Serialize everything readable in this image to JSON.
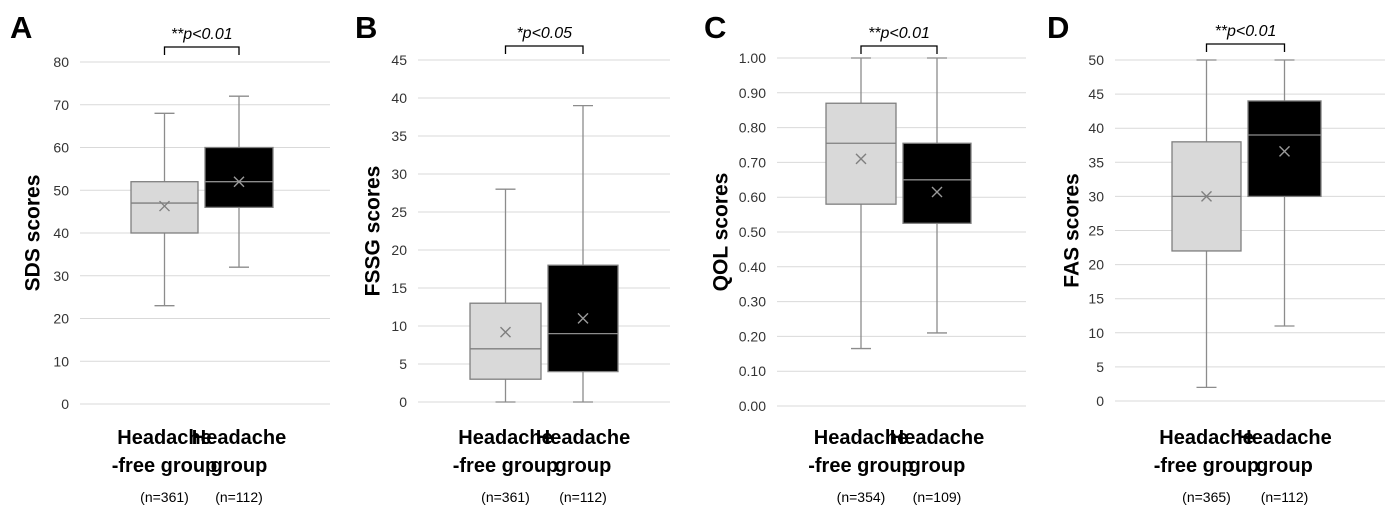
{
  "chart_data": [
    {
      "type": "box",
      "panel": "A",
      "ylabel": "SDS scores",
      "ylim": [
        0,
        80
      ],
      "yticks": [
        0,
        10,
        20,
        30,
        40,
        50,
        60,
        70,
        80
      ],
      "grid": true,
      "significance": "**p<0.01",
      "categories": [
        {
          "label_line1": "Headache",
          "label_line2": "-free group",
          "n": "(n=361)",
          "color": "#d9d9d9",
          "min": 23,
          "q1": 40,
          "median": 47,
          "q3": 52,
          "max": 68,
          "mean": 46.3
        },
        {
          "label_line1": "Headache",
          "label_line2": "group",
          "n": "(n=112)",
          "color": "#000000",
          "min": 32,
          "q1": 46,
          "median": 52,
          "q3": 60,
          "max": 72,
          "mean": 52
        }
      ]
    },
    {
      "type": "box",
      "panel": "B",
      "ylabel": "FSSG scores",
      "ylim": [
        0,
        45
      ],
      "yticks": [
        0,
        5,
        10,
        15,
        20,
        25,
        30,
        35,
        40,
        45
      ],
      "grid": true,
      "significance": "*p<0.05",
      "categories": [
        {
          "label_line1": "Headache",
          "label_line2": "-free group",
          "n": "(n=361)",
          "color": "#d9d9d9",
          "min": 0,
          "q1": 3,
          "median": 7,
          "q3": 13,
          "max": 28,
          "mean": 9.2
        },
        {
          "label_line1": "Headache",
          "label_line2": "group",
          "n": "(n=112)",
          "color": "#000000",
          "min": 0,
          "q1": 4,
          "median": 9,
          "q3": 18,
          "max": 39,
          "mean": 11
        }
      ]
    },
    {
      "type": "box",
      "panel": "C",
      "ylabel": "QOL scores",
      "ylim": [
        0,
        1
      ],
      "yticks": [
        "0.00",
        "0.10",
        "0.20",
        "0.30",
        "0.40",
        "0.50",
        "0.60",
        "0.70",
        "0.80",
        "0.90",
        "1.00"
      ],
      "grid": true,
      "significance": "**p<0.01",
      "categories": [
        {
          "label_line1": "Headache",
          "label_line2": "-free group",
          "n": "(n=354)",
          "color": "#d9d9d9",
          "min": 0.165,
          "q1": 0.58,
          "median": 0.755,
          "q3": 0.87,
          "max": 1.0,
          "mean": 0.71
        },
        {
          "label_line1": "Headache",
          "label_line2": "group",
          "n": "(n=109)",
          "color": "#000000",
          "min": 0.21,
          "q1": 0.525,
          "median": 0.65,
          "q3": 0.755,
          "max": 1.0,
          "mean": 0.615
        }
      ]
    },
    {
      "type": "box",
      "panel": "D",
      "ylabel": "FAS scores",
      "ylim": [
        0,
        50
      ],
      "yticks": [
        0,
        5,
        10,
        15,
        20,
        25,
        30,
        35,
        40,
        45,
        50
      ],
      "grid": true,
      "significance": "**p<0.01",
      "categories": [
        {
          "label_line1": "Headache",
          "label_line2": "-free group",
          "n": "(n=365)",
          "color": "#d9d9d9",
          "min": 2,
          "q1": 22,
          "median": 30,
          "q3": 38,
          "max": 50,
          "mean": 30
        },
        {
          "label_line1": "Headache",
          "label_line2": "group",
          "n": "(n=112)",
          "color": "#000000",
          "min": 11,
          "q1": 30,
          "median": 39,
          "q3": 44,
          "max": 50,
          "mean": 36.6
        }
      ]
    }
  ]
}
